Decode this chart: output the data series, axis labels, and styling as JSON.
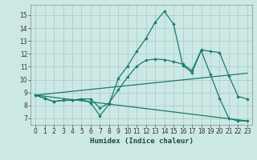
{
  "xlabel": "Humidex (Indice chaleur)",
  "background_color": "#cce8e4",
  "grid_color": "#aacfcb",
  "line_color": "#1a7a6e",
  "xlim": [
    -0.5,
    23.5
  ],
  "ylim": [
    6.5,
    15.8
  ],
  "yticks": [
    7,
    8,
    9,
    10,
    11,
    12,
    13,
    14,
    15
  ],
  "xticks": [
    0,
    1,
    2,
    3,
    4,
    5,
    6,
    7,
    8,
    9,
    10,
    11,
    12,
    13,
    14,
    15,
    16,
    17,
    18,
    19,
    20,
    21,
    22,
    23
  ],
  "line1_x": [
    0,
    1,
    2,
    3,
    4,
    5,
    6,
    7,
    8,
    9,
    10,
    11,
    12,
    13,
    14,
    15,
    16,
    17,
    18,
    19,
    20,
    21,
    22,
    23
  ],
  "line1_y": [
    8.8,
    8.55,
    8.3,
    8.4,
    8.4,
    8.5,
    8.2,
    7.2,
    8.1,
    10.1,
    11.05,
    12.2,
    13.2,
    14.45,
    15.3,
    14.3,
    11.1,
    10.55,
    12.25,
    10.4,
    8.55,
    7.0,
    6.8,
    6.8
  ],
  "line2_x": [
    0,
    1,
    2,
    3,
    4,
    5,
    6,
    7,
    8,
    9,
    10,
    11,
    12,
    13,
    14,
    15,
    16,
    17,
    18,
    19,
    20,
    21,
    22,
    23
  ],
  "line2_y": [
    8.8,
    8.55,
    8.3,
    8.4,
    8.4,
    8.5,
    8.5,
    7.8,
    8.2,
    9.2,
    10.2,
    11.05,
    11.5,
    11.6,
    11.55,
    11.4,
    11.2,
    10.7,
    12.3,
    12.2,
    12.1,
    10.3,
    8.7,
    8.5
  ],
  "line3_x": [
    0,
    23
  ],
  "line3_y": [
    8.8,
    10.5
  ],
  "line4_x": [
    0,
    23
  ],
  "line4_y": [
    8.8,
    6.8
  ]
}
